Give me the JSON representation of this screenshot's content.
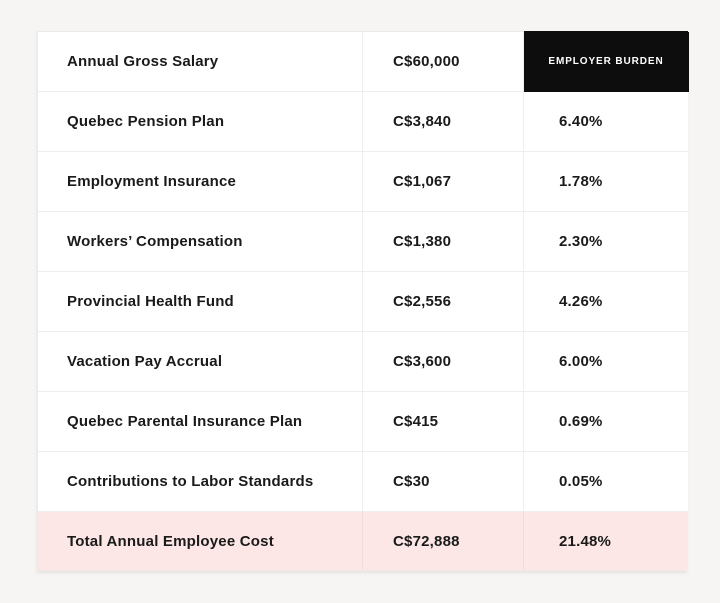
{
  "table": {
    "description": "Annual employer cost breakdown table",
    "rows": [
      {
        "label": "Annual Gross Salary",
        "amount": "C$60,000",
        "burden": "EMPLOYER BURDEN"
      },
      {
        "label": "Quebec Pension Plan",
        "amount": "C$3,840",
        "burden": "6.40%"
      },
      {
        "label": "Employment Insurance",
        "amount": "C$1,067",
        "burden": "1.78%"
      },
      {
        "label": "Workers’ Compensation",
        "amount": "C$1,380",
        "burden": "2.30%"
      },
      {
        "label": "Provincial Health Fund",
        "amount": "C$2,556",
        "burden": "4.26%"
      },
      {
        "label": "Vacation Pay Accrual",
        "amount": "C$3,600",
        "burden": "6.00%"
      },
      {
        "label": "Quebec Parental Insurance Plan",
        "amount": "C$415",
        "burden": "0.69%"
      },
      {
        "label": "Contributions to Labor Standards",
        "amount": "C$30",
        "burden": "0.05%"
      },
      {
        "label": "Total Annual Employee Cost",
        "amount": "C$72,888",
        "burden": "21.48%"
      }
    ],
    "colors": {
      "page_background": "#f7f5f4",
      "cell_background": "#ffffff",
      "border": "#efeeec",
      "burden_header_background": "#0d0d0d",
      "burden_header_text": "#ffffff",
      "total_row_background": "#fce6e6",
      "text": "#1a1a1a"
    }
  }
}
